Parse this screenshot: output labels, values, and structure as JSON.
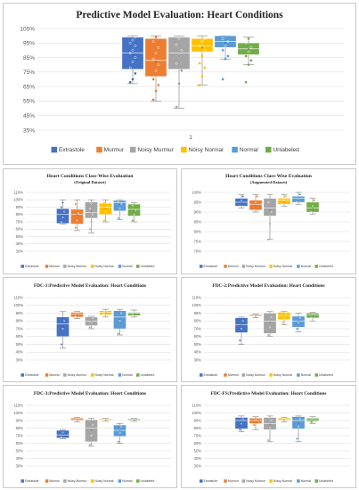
{
  "series_colors": [
    "#4472c4",
    "#ed7d31",
    "#a5a5a5",
    "#ffc000",
    "#5b9bd5",
    "#70ad47"
  ],
  "charts": [
    {
      "id": "main",
      "title": "Predictive Model Evaluation: Heart Conditions",
      "subtitle": "",
      "yticks": [
        "35%",
        "45%",
        "55%",
        "65%",
        "75%",
        "85%",
        "95%",
        "105%"
      ],
      "x_tick": "1",
      "legend": [
        "Extrastole",
        "Murmur",
        "Noisy Murmur",
        "Noisy Normal",
        "Normal",
        "Unlabeled"
      ],
      "chart_data": {
        "type": "box",
        "ylim": [
          35,
          105
        ],
        "series": [
          {
            "name": "Extrastole",
            "min": 67,
            "q1": 77,
            "median": 88,
            "q3": 99,
            "max": 100,
            "mean": 87,
            "points": [
              68,
              70,
              74,
              78,
              82,
              85,
              88,
              90,
              93,
              95,
              97,
              99
            ]
          },
          {
            "name": "Murmur",
            "min": 55,
            "q1": 72,
            "median": 83,
            "q3": 98,
            "max": 100,
            "mean": 82,
            "points": [
              56,
              62,
              66,
              70,
              76,
              80,
              84,
              88,
              92,
              96,
              99
            ]
          },
          {
            "name": "Noisy Murmur",
            "min": 50,
            "q1": 77,
            "median": 88,
            "q3": 99,
            "max": 100,
            "mean": 86,
            "points": [
              51,
              67,
              76,
              81,
              86,
              90,
              94,
              98
            ]
          },
          {
            "name": "Noisy Normal",
            "min": 66,
            "q1": 89,
            "median": 93,
            "q3": 98,
            "max": 100,
            "mean": 92,
            "points": [
              66,
              72,
              78,
              81,
              86,
              90,
              93,
              96,
              98
            ]
          },
          {
            "name": "Normal",
            "min": 84,
            "q1": 92,
            "median": 96,
            "q3": 100,
            "max": 100,
            "mean": 95,
            "points": [
              70,
              84,
              86,
              90,
              93,
              96,
              98
            ]
          },
          {
            "name": "Unlabeled",
            "min": 80,
            "q1": 87,
            "median": 91,
            "q3": 95,
            "max": 99,
            "mean": 91,
            "points": [
              68,
              80,
              83,
              86,
              89,
              92,
              95,
              98
            ]
          }
        ]
      }
    },
    {
      "id": "orig",
      "title": "Heart Conditions Class-Wise Evaluation",
      "subtitle": "(Original Dataset)",
      "yticks": [
        "30%",
        "40%",
        "50%",
        "60%",
        "70%",
        "80%",
        "90%",
        "100%",
        "110%"
      ],
      "x_tick": "",
      "legend": [
        "Extrastole",
        "Murmur",
        "Noisy Murmur",
        "Noisy Normal",
        "Normal",
        "Unlabeled"
      ],
      "chart_data": {
        "type": "box",
        "ylim": [
          30,
          110
        ],
        "series": [
          {
            "name": "Extrastole",
            "min": 67,
            "q1": 68,
            "median": 80,
            "q3": 88,
            "max": 100,
            "mean": 82,
            "points": [
              70,
              76,
              84,
              90,
              96
            ]
          },
          {
            "name": "Murmur",
            "min": 58,
            "q1": 67,
            "median": 80,
            "q3": 87,
            "max": 100,
            "mean": 79,
            "points": [
              62,
              72,
              82,
              94
            ]
          },
          {
            "name": "Noisy Murmur",
            "min": 55,
            "q1": 75,
            "median": 83,
            "q3": 97,
            "max": 100,
            "mean": 84,
            "points": [
              60,
              70,
              80,
              88,
              95
            ]
          },
          {
            "name": "Noisy Normal",
            "min": 70,
            "q1": 80,
            "median": 90,
            "q3": 95,
            "max": 100,
            "mean": 88,
            "points": [
              72,
              84,
              90,
              96
            ]
          },
          {
            "name": "Normal",
            "min": 73,
            "q1": 85,
            "median": 96,
            "q3": 99,
            "max": 100,
            "mean": 93,
            "points": [
              75,
              88,
              94,
              98
            ]
          },
          {
            "name": "Unlabeled",
            "min": 70,
            "q1": 78,
            "median": 87,
            "q3": 94,
            "max": 96,
            "mean": 85,
            "points": [
              72,
              80,
              86,
              92
            ]
          }
        ]
      }
    },
    {
      "id": "aug",
      "title": "Heart Conditions Class-Wise Evaluation",
      "subtitle": "(Augmented Dataset)",
      "yticks": [
        "70%",
        "75%",
        "80%",
        "85%",
        "90%",
        "95%",
        "100%"
      ],
      "x_tick": "",
      "legend": [
        "Extrastole",
        "Murmur",
        "Noisy Murmur",
        "Noisy Normal",
        "Normal",
        "Unlabeled"
      ],
      "chart_data": {
        "type": "box",
        "ylim": [
          70,
          100
        ],
        "series": [
          {
            "name": "Extrastole",
            "min": 92,
            "q1": 93,
            "median": 95,
            "q3": 97,
            "max": 99,
            "mean": 95,
            "points": [
              93,
              96,
              98
            ]
          },
          {
            "name": "Murmur",
            "min": 90,
            "q1": 91,
            "median": 94,
            "q3": 96,
            "max": 99,
            "mean": 93,
            "points": [
              91,
              95,
              98
            ]
          },
          {
            "name": "Noisy Murmur",
            "min": 76,
            "q1": 88,
            "median": 92,
            "q3": 97,
            "max": 99,
            "mean": 91,
            "points": [
              76,
              84,
              90,
              95
            ]
          },
          {
            "name": "Noisy Normal",
            "min": 93,
            "q1": 94,
            "median": 96,
            "q3": 97,
            "max": 99,
            "mean": 95,
            "points": [
              94,
              96,
              98
            ]
          },
          {
            "name": "Normal",
            "min": 94,
            "q1": 95,
            "median": 97,
            "q3": 98,
            "max": 100,
            "mean": 97,
            "points": [
              95,
              97,
              99
            ]
          },
          {
            "name": "Unlabeled",
            "min": 89,
            "q1": 90,
            "median": 92,
            "q3": 95,
            "max": 97,
            "mean": 92,
            "points": [
              90,
              93,
              96
            ]
          }
        ]
      }
    },
    {
      "id": "fdc1",
      "title": "FDC-1:Predictive Model Evaluation: Heart Conditions",
      "subtitle": "",
      "yticks": [
        "30%",
        "40%",
        "50%",
        "60%",
        "70%",
        "80%",
        "90%",
        "100%",
        "110%"
      ],
      "x_tick": "",
      "legend": [
        "Extrastole",
        "Murmur",
        "Noisy Murmur",
        "Noisy Normal",
        "Normal",
        "Unlabeled"
      ],
      "chart_data": {
        "type": "box",
        "ylim": [
          30,
          110
        ],
        "series": [
          {
            "name": "Extrastole",
            "min": 45,
            "q1": 60,
            "median": 76,
            "q3": 85,
            "max": 92,
            "mean": 73,
            "points": [
              50,
              70,
              80
            ]
          },
          {
            "name": "Murmur",
            "min": 83,
            "q1": 85,
            "median": 89,
            "q3": 91,
            "max": 92,
            "mean": 88,
            "points": [
              86,
              90
            ]
          },
          {
            "name": "Noisy Murmur",
            "min": 70,
            "q1": 74,
            "median": 80,
            "q3": 85,
            "max": 86,
            "mean": 79,
            "points": [
              72,
              78,
              84
            ]
          },
          {
            "name": "Noisy Normal",
            "min": 85,
            "q1": 88,
            "median": 91,
            "q3": 93,
            "max": 95,
            "mean": 90,
            "points": [
              89,
              92
            ]
          },
          {
            "name": "Normal",
            "min": 62,
            "q1": 70,
            "median": 85,
            "q3": 93,
            "max": 95,
            "mean": 82,
            "points": [
              64,
              80,
              90
            ]
          },
          {
            "name": "Unlabeled",
            "min": 85,
            "q1": 87,
            "median": 90,
            "q3": 91,
            "max": 94,
            "mean": 89,
            "points": [
              88,
              91
            ]
          }
        ]
      }
    },
    {
      "id": "fdc2",
      "title": "FDC-2:Predictive Model Evaluation: Heart Conditions",
      "subtitle": "",
      "yticks": [
        "30%",
        "40%",
        "50%",
        "60%",
        "70%",
        "80%",
        "90%",
        "100%",
        "110%"
      ],
      "x_tick": "",
      "legend": [
        "Extrastole",
        "Murmur",
        "Noisy Murmur",
        "Noisy Normal",
        "Normal",
        "Unlabeled"
      ],
      "chart_data": {
        "type": "box",
        "ylim": [
          30,
          110
        ],
        "series": [
          {
            "name": "Extrastole",
            "min": 50,
            "q1": 65,
            "median": 75,
            "q3": 84,
            "max": 85,
            "mean": 74,
            "points": [
              55,
              70,
              80
            ]
          },
          {
            "name": "Murmur",
            "min": 84,
            "q1": 86,
            "median": 87,
            "q3": 88,
            "max": 89,
            "mean": 87,
            "points": [
              86,
              88
            ]
          },
          {
            "name": "Noisy Murmur",
            "min": 60,
            "q1": 64,
            "median": 80,
            "q3": 90,
            "max": 92,
            "mean": 78,
            "points": [
              62,
              72,
              85
            ]
          },
          {
            "name": "Noisy Normal",
            "min": 75,
            "q1": 82,
            "median": 87,
            "q3": 91,
            "max": 92,
            "mean": 86,
            "points": [
              78,
              85,
              90
            ]
          },
          {
            "name": "Normal",
            "min": 66,
            "q1": 72,
            "median": 80,
            "q3": 86,
            "max": 90,
            "mean": 79,
            "points": [
              70,
              78,
              84
            ]
          },
          {
            "name": "Unlabeled",
            "min": 80,
            "q1": 84,
            "median": 88,
            "q3": 90,
            "max": 91,
            "mean": 87,
            "points": [
              84,
              88
            ]
          }
        ]
      }
    },
    {
      "id": "fdc3",
      "title": "FDC-3:Predictive Model Evaluation: Heart Conditions",
      "subtitle": "",
      "yticks": [
        "30%",
        "40%",
        "50%",
        "60%",
        "70%",
        "80%",
        "90%",
        "100%",
        "110%"
      ],
      "x_tick": "",
      "legend": [
        "Extrastole",
        "Murmur",
        "Noisy Murmur",
        "Noisy Normal",
        "Normal",
        "Unlabeled"
      ],
      "chart_data": {
        "type": "box",
        "ylim": [
          30,
          110
        ],
        "series": [
          {
            "name": "Extrastole",
            "min": 66,
            "q1": 67,
            "median": 71,
            "q3": 77,
            "max": 78,
            "mean": 72,
            "points": [
              68,
              74
            ]
          },
          {
            "name": "Murmur",
            "min": 88,
            "q1": 90,
            "median": 91,
            "q3": 93,
            "max": 94,
            "mean": 91,
            "points": [
              90,
              92
            ]
          },
          {
            "name": "Noisy Murmur",
            "min": 56,
            "q1": 62,
            "median": 80,
            "q3": 91,
            "max": 93,
            "mean": 77,
            "points": [
              58,
              70,
              84
            ]
          },
          {
            "name": "Noisy Normal",
            "min": 89,
            "q1": 90,
            "median": 91,
            "q3": 92,
            "max": 93,
            "mean": 91,
            "points": [
              90,
              92
            ]
          },
          {
            "name": "Normal",
            "min": 60,
            "q1": 69,
            "median": 77,
            "q3": 84,
            "max": 86,
            "mean": 76,
            "points": [
              62,
              74,
              82
            ]
          },
          {
            "name": "Unlabeled",
            "min": 89,
            "q1": 90,
            "median": 91,
            "q3": 92,
            "max": 93,
            "mean": 91,
            "points": [
              90,
              92
            ]
          }
        ]
      }
    },
    {
      "id": "fdcfs",
      "title": "FDC-FS:Predictive Model Evaluation: Heart Conditions",
      "subtitle": "",
      "yticks": [
        "30%",
        "40%",
        "50%",
        "60%",
        "70%",
        "80%",
        "90%",
        "100%",
        "110%"
      ],
      "x_tick": "",
      "legend": [
        "Extrastole",
        "Murmur",
        "Noisy Murmur",
        "Noisy Normal",
        "Normal",
        "Unlabeled"
      ],
      "chart_data": {
        "type": "box",
        "ylim": [
          30,
          110
        ],
        "series": [
          {
            "name": "Extrastole",
            "min": 75,
            "q1": 79,
            "median": 90,
            "q3": 94,
            "max": 96,
            "mean": 87,
            "points": [
              78,
              86,
              92
            ]
          },
          {
            "name": "Murmur",
            "min": 78,
            "q1": 86,
            "median": 90,
            "q3": 93,
            "max": 95,
            "mean": 89,
            "points": [
              84,
              90
            ]
          },
          {
            "name": "Noisy Murmur",
            "min": 62,
            "q1": 78,
            "median": 86,
            "q3": 94,
            "max": 96,
            "mean": 85,
            "points": [
              64,
              80,
              90
            ]
          },
          {
            "name": "Noisy Normal",
            "min": 88,
            "q1": 90,
            "median": 91,
            "q3": 93,
            "max": 94,
            "mean": 91,
            "points": [
              90,
              92
            ]
          },
          {
            "name": "Normal",
            "min": 62,
            "q1": 79,
            "median": 90,
            "q3": 95,
            "max": 96,
            "mean": 86,
            "points": [
              66,
              82,
              92
            ]
          },
          {
            "name": "Unlabeled",
            "min": 86,
            "q1": 89,
            "median": 91,
            "q3": 93,
            "max": 95,
            "mean": 91,
            "points": [
              88,
              92
            ]
          }
        ]
      }
    }
  ]
}
